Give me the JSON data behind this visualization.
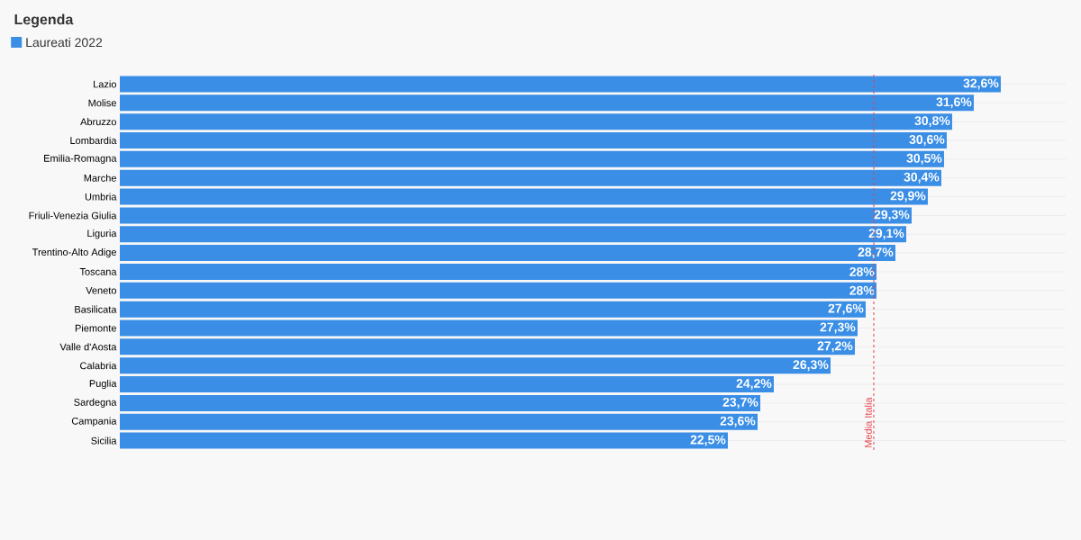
{
  "chart_data": {
    "type": "bar",
    "orientation": "horizontal",
    "legend_title": "Legenda",
    "legend": "top left",
    "grid": "y",
    "categories": [
      "Lazio",
      "Molise",
      "Abruzzo",
      "Lombardia",
      "Emilia-Romagna",
      "Marche",
      "Umbria",
      "Friuli-Venezia Giulia",
      "Liguria",
      "Trentino-Alto Adige",
      "Toscana",
      "Veneto",
      "Basilicata",
      "Piemonte",
      "Valle d'Aosta",
      "Calabria",
      "Puglia",
      "Sardegna",
      "Campania",
      "Sicilia"
    ],
    "series": [
      {
        "name": "Laureati 2022",
        "color": "#3a8ee6",
        "values": [
          32.6,
          31.6,
          30.8,
          30.6,
          30.5,
          30.4,
          29.9,
          29.3,
          29.1,
          28.7,
          28,
          28,
          27.6,
          27.3,
          27.2,
          26.3,
          24.2,
          23.7,
          23.6,
          22.5
        ],
        "value_labels": [
          "32,6%",
          "31,6%",
          "30,8%",
          "30,6%",
          "30,5%",
          "30,4%",
          "29,9%",
          "29,3%",
          "29,1%",
          "28,7%",
          "28%",
          "28%",
          "27,6%",
          "27,3%",
          "27,2%",
          "26,3%",
          "24,2%",
          "23,7%",
          "23,6%",
          "22,5%"
        ]
      }
    ],
    "xlim": [
      0,
      35
    ],
    "ref_lines": [
      {
        "axis": "x",
        "value": 27.9,
        "label": "Media Italia",
        "color": "#e8434b",
        "line_style": "dashed"
      }
    ]
  }
}
